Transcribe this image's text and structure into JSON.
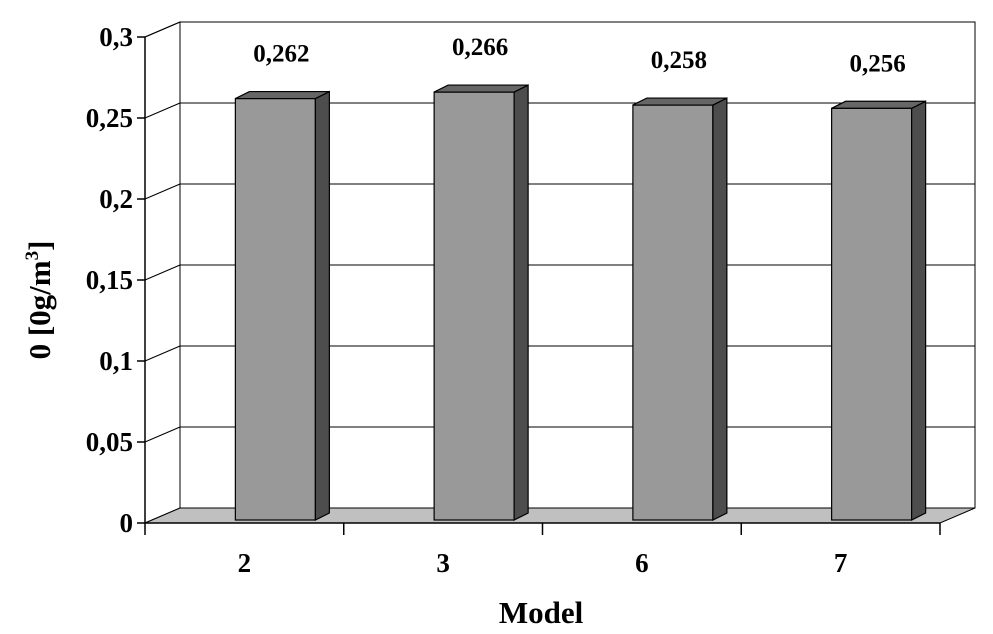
{
  "chart_data": {
    "type": "bar",
    "categories": [
      "2",
      "3",
      "6",
      "7"
    ],
    "values": [
      0.262,
      0.266,
      0.258,
      0.256
    ],
    "data_labels": [
      "0,262",
      "0,266",
      "0,258",
      "0,256"
    ],
    "xlabel": "Model",
    "ylabel": {
      "main": "0 [0g/m",
      "sup": "3",
      "close": "]"
    },
    "ylim": [
      0,
      0.3
    ],
    "yticks": [
      {
        "value": 0,
        "label": "0"
      },
      {
        "value": 0.05,
        "label": "0,05"
      },
      {
        "value": 0.1,
        "label": "0,1"
      },
      {
        "value": 0.15,
        "label": "0,15"
      },
      {
        "value": 0.2,
        "label": "0,2"
      },
      {
        "value": 0.25,
        "label": "0,25"
      },
      {
        "value": 0.3,
        "label": "0,3"
      }
    ],
    "grid": true,
    "style": "3d-column",
    "colors": {
      "bar_front": "#999999",
      "bar_side": "#4d4d4d",
      "bar_top": "#666666",
      "floor": "#c0c0c0",
      "grid": "#000000"
    }
  }
}
